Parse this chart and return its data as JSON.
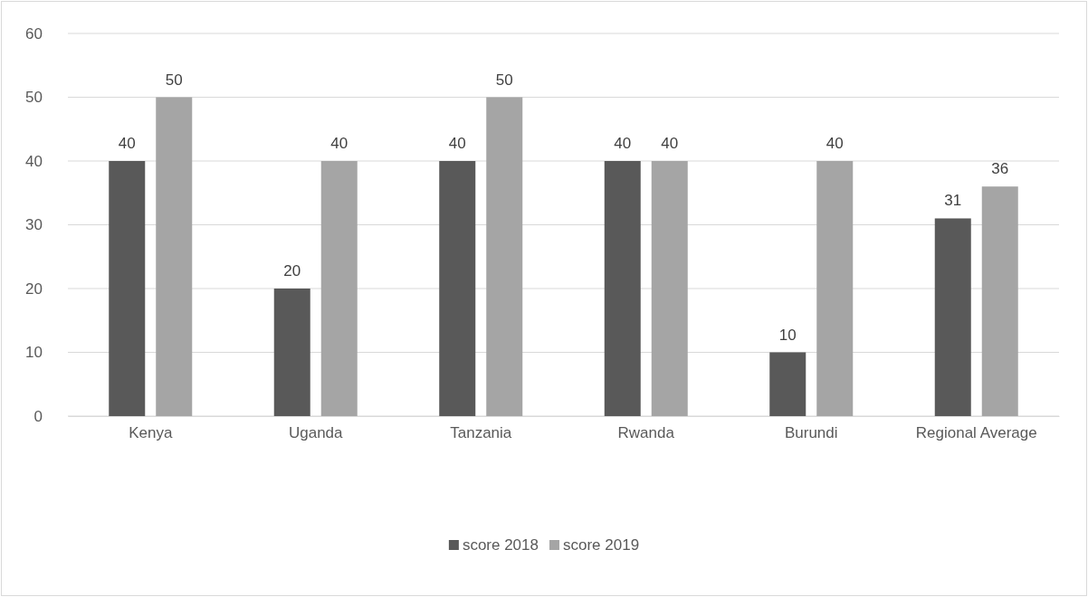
{
  "chart_data": {
    "type": "bar",
    "categories": [
      "Kenya",
      "Uganda",
      "Tanzania",
      "Rwanda",
      "Burundi",
      "Regional Average"
    ],
    "series": [
      {
        "name": "score 2018",
        "color": "#595959",
        "values": [
          40,
          20,
          40,
          40,
          10,
          31
        ]
      },
      {
        "name": "score 2019",
        "color": "#a5a5a5",
        "values": [
          50,
          40,
          50,
          40,
          40,
          36
        ]
      }
    ],
    "ylim": [
      0,
      60
    ],
    "yticks": [
      0,
      10,
      20,
      30,
      40,
      50,
      60
    ],
    "grid": "y",
    "legend": "bottom",
    "data_labels": true
  }
}
